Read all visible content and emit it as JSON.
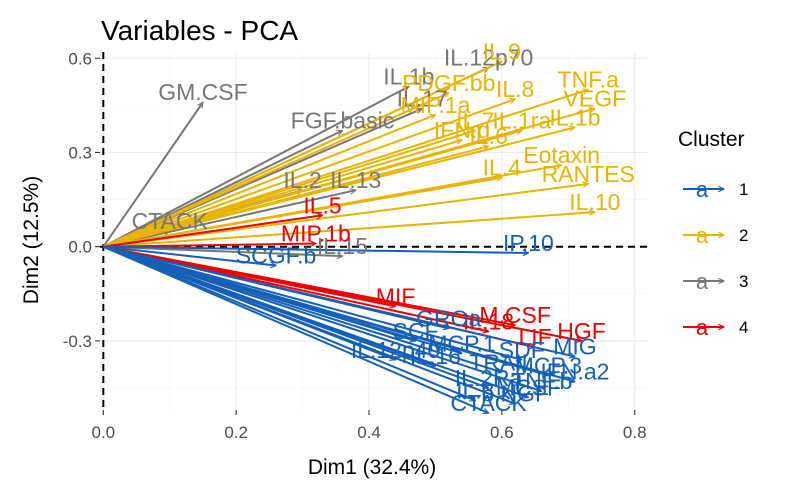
{
  "chart_data": {
    "type": "scatter",
    "subtype": "pca-variable-arrows",
    "title": "Variables - PCA",
    "xlabel": "Dim1 (32.4%)",
    "ylabel": "Dim2 (12.5%)",
    "xlim": [
      -0.005,
      0.82
    ],
    "ylim": [
      -0.52,
      0.62
    ],
    "x_ticks": [
      0.0,
      0.2,
      0.4,
      0.6,
      0.8
    ],
    "x_tick_labels": [
      "0.0",
      "0.2",
      "0.4",
      "0.6",
      "0.8"
    ],
    "y_ticks": [
      -0.3,
      0.0,
      0.3,
      0.6
    ],
    "y_tick_labels": [
      "-0.3",
      "0.0",
      "0.3",
      "0.6"
    ],
    "reference_lines": {
      "x": 0,
      "y": 0,
      "style": "dashed"
    },
    "grid": true,
    "legend": {
      "title": "Cluster",
      "position": "right",
      "key_glyph": "a",
      "entries": [
        {
          "label": "1",
          "color": "#1460b8"
        },
        {
          "label": "2",
          "color": "#e8b400"
        },
        {
          "label": "3",
          "color": "#767676"
        },
        {
          "label": "4",
          "color": "#ee0000"
        }
      ]
    },
    "cluster_colors": {
      "1": "#1460b8",
      "2": "#e8b400",
      "3": "#767676",
      "4": "#ee0000"
    },
    "variables": [
      {
        "name": "GM.CSF",
        "cluster": "3",
        "x": 0.15,
        "y": 0.46
      },
      {
        "name": "IL.1b",
        "cluster": "3",
        "x": 0.46,
        "y": 0.51
      },
      {
        "name": "IL.12p70",
        "cluster": "3",
        "x": 0.58,
        "y": 0.57
      },
      {
        "name": "IL.17",
        "cluster": "3",
        "x": 0.48,
        "y": 0.44
      },
      {
        "name": "FGF.basic",
        "cluster": "3",
        "x": 0.36,
        "y": 0.37
      },
      {
        "name": "IL.2",
        "cluster": "3",
        "x": 0.3,
        "y": 0.18
      },
      {
        "name": "IL.13",
        "cluster": "3",
        "x": 0.38,
        "y": 0.18
      },
      {
        "name": "CTACK",
        "cluster": "3",
        "x": 0.1,
        "y": 0.05
      },
      {
        "name": "IL.15",
        "cluster": "3",
        "x": 0.36,
        "y": -0.03
      },
      {
        "name": "SCGF.b",
        "cluster": "1",
        "x": 0.26,
        "y": -0.06
      },
      {
        "name": "IL.9",
        "cluster": "2",
        "x": 0.6,
        "y": 0.59
      },
      {
        "name": "PDGF.bb",
        "cluster": "2",
        "x": 0.52,
        "y": 0.49
      },
      {
        "name": "TNF.a",
        "cluster": "2",
        "x": 0.73,
        "y": 0.5
      },
      {
        "name": "IL.8",
        "cluster": "2",
        "x": 0.62,
        "y": 0.47
      },
      {
        "name": "VEGF",
        "cluster": "2",
        "x": 0.74,
        "y": 0.44
      },
      {
        "name": "MIP.1a",
        "cluster": "2",
        "x": 0.5,
        "y": 0.42
      },
      {
        "name": "IL.7",
        "cluster": "2",
        "x": 0.56,
        "y": 0.37
      },
      {
        "name": "IL.1ra",
        "cluster": "2",
        "x": 0.63,
        "y": 0.37
      },
      {
        "name": "IL.1b",
        "cluster": "2",
        "x": 0.71,
        "y": 0.38
      },
      {
        "name": "IFN.g",
        "cluster": "2",
        "x": 0.54,
        "y": 0.34
      },
      {
        "name": "IL.6",
        "cluster": "2",
        "x": 0.58,
        "y": 0.32
      },
      {
        "name": "Eotaxin",
        "cluster": "2",
        "x": 0.69,
        "y": 0.26
      },
      {
        "name": "IL.4",
        "cluster": "2",
        "x": 0.6,
        "y": 0.22
      },
      {
        "name": "RANTES",
        "cluster": "2",
        "x": 0.73,
        "y": 0.2
      },
      {
        "name": "IL.10",
        "cluster": "2",
        "x": 0.74,
        "y": 0.11
      },
      {
        "name": "IL.5",
        "cluster": "4",
        "x": 0.33,
        "y": 0.1
      },
      {
        "name": "MIP.1b",
        "cluster": "4",
        "x": 0.32,
        "y": 0.01
      },
      {
        "name": "IP.10",
        "cluster": "1",
        "x": 0.64,
        "y": -0.02
      },
      {
        "name": "MIF",
        "cluster": "4",
        "x": 0.44,
        "y": -0.19
      },
      {
        "name": "M.CSF",
        "cluster": "4",
        "x": 0.62,
        "y": -0.25
      },
      {
        "name": "HGF",
        "cluster": "4",
        "x": 0.72,
        "y": -0.3
      },
      {
        "name": "IL.18",
        "cluster": "4",
        "x": 0.58,
        "y": -0.27
      },
      {
        "name": "LIF",
        "cluster": "4",
        "x": 0.65,
        "y": -0.32
      },
      {
        "name": "GROa",
        "cluster": "1",
        "x": 0.52,
        "y": -0.26
      },
      {
        "name": "SCF",
        "cluster": "1",
        "x": 0.47,
        "y": -0.3
      },
      {
        "name": "MCP.1",
        "cluster": "1",
        "x": 0.54,
        "y": -0.34
      },
      {
        "name": "MIG",
        "cluster": "1",
        "x": 0.71,
        "y": -0.35
      },
      {
        "name": "SDF",
        "cluster": "1",
        "x": 0.63,
        "y": -0.36
      },
      {
        "name": "IL.12p40",
        "cluster": "1",
        "x": 0.44,
        "y": -0.36
      },
      {
        "name": "IL.16",
        "cluster": "1",
        "x": 0.5,
        "y": -0.38
      },
      {
        "name": "TRAIL",
        "cluster": "1",
        "x": 0.6,
        "y": -0.4
      },
      {
        "name": "MCP.3",
        "cluster": "1",
        "x": 0.67,
        "y": -0.41
      },
      {
        "name": "IL.2Ra",
        "cluster": "1",
        "x": 0.58,
        "y": -0.45
      },
      {
        "name": "IL.3",
        "cluster": "1",
        "x": 0.56,
        "y": -0.49
      },
      {
        "name": "b.NGF",
        "cluster": "1",
        "x": 0.62,
        "y": -0.5
      },
      {
        "name": "TNF.b",
        "cluster": "1",
        "x": 0.66,
        "y": -0.46
      },
      {
        "name": "MCSF",
        "cluster": "1",
        "x": 0.64,
        "y": -0.48
      },
      {
        "name": "IFN.a2",
        "cluster": "1",
        "x": 0.71,
        "y": -0.43
      },
      {
        "name": "CTACK",
        "cluster": "1",
        "x": 0.58,
        "y": -0.53
      }
    ]
  }
}
